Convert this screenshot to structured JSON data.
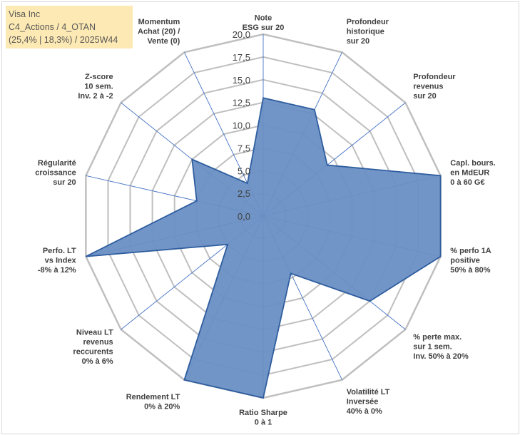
{
  "title_box": {
    "line1": "Visa Inc",
    "line2": "C4_Actions / 4_OTAN",
    "line3": "(25,4% | 18,3%) / 2025W44"
  },
  "colors": {
    "fill": "#6a8fc4",
    "stroke": "#2e5d9f",
    "grid": "#bfbfbf",
    "spoke": "#4472c4",
    "title_bg": "#fde9b3"
  },
  "chart_data": {
    "type": "radar",
    "rmax": 20,
    "ticks": [
      "0,0",
      "2,5",
      "5,0",
      "7,5",
      "10,0",
      "12,5",
      "15,0",
      "17,5",
      "20,0"
    ],
    "axes": [
      {
        "label": [
          "Note",
          "ESG sur 20"
        ],
        "value": 13
      },
      {
        "label": [
          "Profondeur",
          "historique",
          "sur 20"
        ],
        "value": 13
      },
      {
        "label": [
          "Profondeur",
          "revenus",
          "sur 20"
        ],
        "value": 9
      },
      {
        "label": [
          "Capl. bours.",
          "en MdEUR",
          "0 à 60 G€"
        ],
        "value": 20
      },
      {
        "label": [
          "% perfo 1A",
          "positive",
          "50% à 80%"
        ],
        "value": 20
      },
      {
        "label": [
          "% perte max.",
          "sur 1 sem.",
          "Inv. 50% à 20%"
        ],
        "value": 15
      },
      {
        "label": [
          "Volatilité LT",
          "Inversée",
          "40% à 0%"
        ],
        "value": 7
      },
      {
        "label": [
          "Ratio Sharpe",
          "0 à 1"
        ],
        "value": 20
      },
      {
        "label": [
          "Rendement LT",
          "0% à 20%"
        ],
        "value": 20
      },
      {
        "label": [
          "Niveau LT",
          "revenus",
          "reccurents",
          "0% à 6%"
        ],
        "value": 5
      },
      {
        "label": [
          "Perfo. LT",
          "vs Index",
          "-8% à 12%"
        ],
        "value": 20
      },
      {
        "label": [
          "Régularité",
          "croissance",
          "sur 20"
        ],
        "value": 7.5
      },
      {
        "label": [
          "Z-score",
          "10 sem.",
          "Inv. 2 à -2"
        ],
        "value": 10
      },
      {
        "label": [
          "Momentum",
          "Achat (20) /",
          "Vente (0)"
        ],
        "value": 4
      }
    ]
  }
}
